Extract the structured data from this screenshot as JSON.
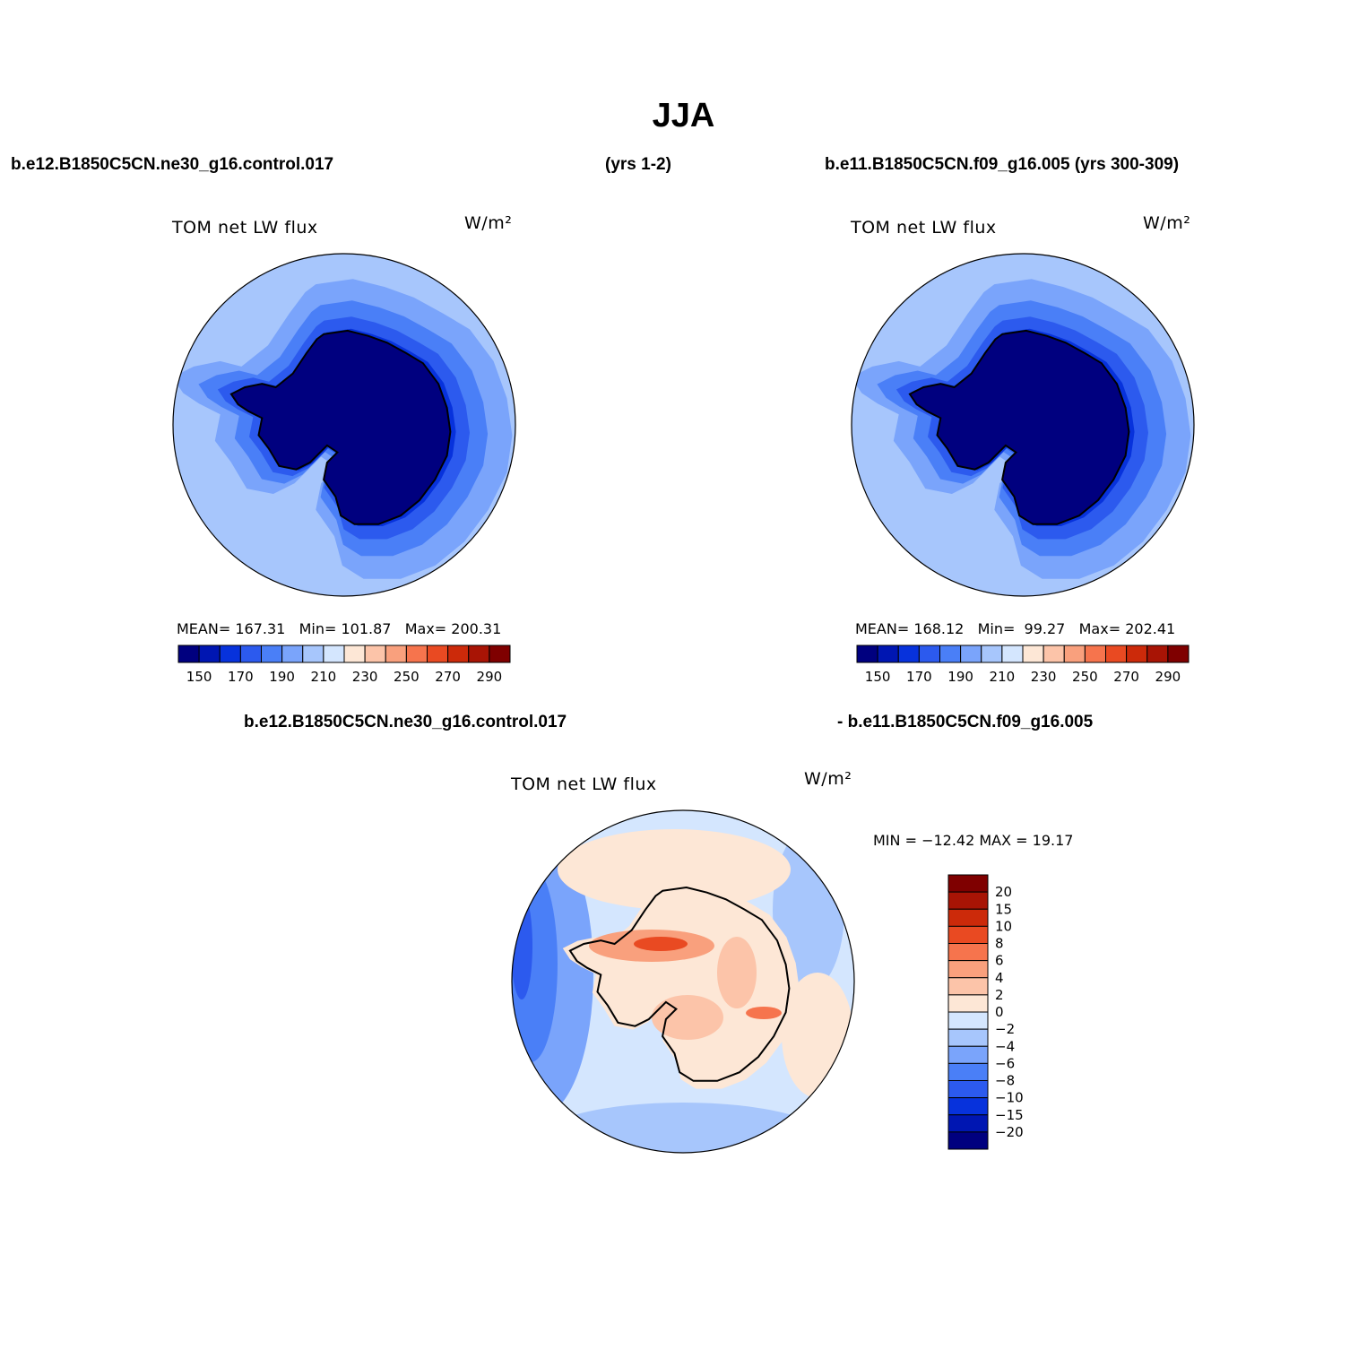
{
  "title": "JJA",
  "headers": {
    "case1": "b.e12.B1850C5CN.ne30_g16.control.017",
    "years1": "(yrs 1-2)",
    "case2": "b.e11.B1850C5CN.f09_g16.005 (yrs 300-309)",
    "diff_left": "b.e12.B1850C5CN.ne30_g16.control.017",
    "diff_right": "- b.e11.B1850C5CN.f09_g16.005"
  },
  "panels": [
    {
      "variable": "TOM  net  LW  flux",
      "units": "W/m²",
      "mean_label": "MEAN=",
      "mean": "167.31",
      "min_label": "Min=",
      "min": "101.87",
      "max_label": "Max=",
      "max": "200.31"
    },
    {
      "variable": "TOM  net  LW  flux",
      "units": "W/m²",
      "mean_label": "MEAN=",
      "mean": "168.12",
      "min_label": "Min=",
      "min": "99.27",
      "max_label": "Max=",
      "max": "202.41"
    }
  ],
  "diff_panel": {
    "variable": "TOM  net  LW  flux",
    "units": "W/m²",
    "minmax_text": "MIN = −12.42 MAX =   19.17"
  },
  "colorbar_main": {
    "colors": [
      "#00007f",
      "#0016b2",
      "#0732dc",
      "#2c5aee",
      "#4a7ff7",
      "#7aa4fb",
      "#a7c6fc",
      "#d4e6fe",
      "#fde7d6",
      "#fcc4a9",
      "#f9a07d",
      "#f6744d",
      "#e94a22",
      "#cc2a0a",
      "#a81405",
      "#7f0000"
    ],
    "tick_labels": [
      "150",
      "170",
      "190",
      "210",
      "230",
      "250",
      "270",
      "290"
    ]
  },
  "colorbar_diff": {
    "colors": [
      "#7f0000",
      "#a81405",
      "#cc2a0a",
      "#e94a22",
      "#f6744d",
      "#f9a07d",
      "#fcc4a9",
      "#fde7d6",
      "#d4e6fe",
      "#a7c6fc",
      "#7aa4fb",
      "#4a7ff7",
      "#2c5aee",
      "#0732dc",
      "#0016b2",
      "#00007f"
    ],
    "tick_labels": [
      "20",
      "15",
      "10",
      "8",
      "6",
      "4",
      "2",
      "0",
      "−2",
      "−4",
      "−6",
      "−8",
      "−10",
      "−15",
      "−20"
    ]
  },
  "map_colors": {
    "field_levels": [
      "#00007f",
      "#0016b2",
      "#0732dc",
      "#2c5aee",
      "#4a7ff7",
      "#7aa4fb",
      "#a7c6fc"
    ],
    "diff_pos": [
      "#fde7d6",
      "#fcc4a9",
      "#f9a07d",
      "#f6744d",
      "#e94a22"
    ],
    "diff_neg": [
      "#d4e6fe",
      "#a7c6fc",
      "#7aa4fb",
      "#4a7ff7",
      "#2c5aee"
    ]
  }
}
